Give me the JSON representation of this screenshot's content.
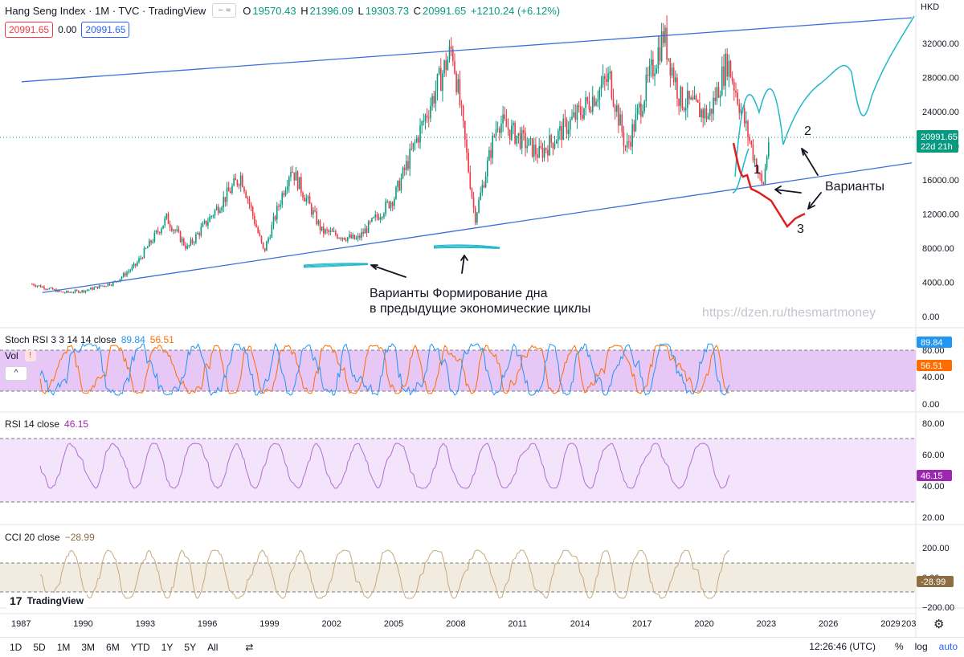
{
  "header": {
    "symbol": "Hang Seng Index · 1M · TVC · TradingView",
    "ohlc": {
      "o_label": "O",
      "o": "19570.43",
      "h_label": "H",
      "h": "21396.09",
      "l_label": "L",
      "l": "19303.73",
      "c_label": "C",
      "c": "20991.65",
      "change": "+1210.24 (+6.12%)"
    },
    "price_sell": "20991.65",
    "spread": "0.00",
    "price_buy": "20991.65",
    "currency": "HKD"
  },
  "colors": {
    "up": "#089981",
    "down": "#f23645",
    "trend": "#3b6fd9",
    "cyan": "#20b7cc",
    "red_path": "#e0201f",
    "stoch_k": "#2196f3",
    "stoch_d": "#ff6d00",
    "rsi": "#b070d0",
    "cci": "#c8a87c"
  },
  "panes": {
    "stoch": {
      "name": "Stoch RSI 3 3 14 14 close",
      "k": "89.84",
      "d": "56.51",
      "ticks": [
        "80.00",
        "40.00",
        "0.00"
      ],
      "tag_k": "89.84",
      "tag_d": "56.51"
    },
    "vol": {
      "name": "Vol",
      "warn": "!"
    },
    "rsi": {
      "name": "RSI 14 close",
      "value": "46.15",
      "ticks": [
        "80.00",
        "60.00",
        "40.00",
        "20.00"
      ],
      "tag": "46.15"
    },
    "cci": {
      "name": "CCI 20 close",
      "value": "−28.99",
      "ticks": [
        "200.00",
        "0.00",
        "−200.00"
      ],
      "tag": "-28.99"
    }
  },
  "price_ticks": [
    "32000.00",
    "28000.00",
    "24000.00",
    "20000.00",
    "16000.00",
    "12000.00",
    "8000.00",
    "4000.00",
    "0.00"
  ],
  "current_price_tag": {
    "price": "20991.65",
    "time": "22d 21h"
  },
  "x_ticks": [
    "1987",
    "1990",
    "1993",
    "1996",
    "1999",
    "2002",
    "2005",
    "2008",
    "2011",
    "2014",
    "2017",
    "2020",
    "2023",
    "2026",
    "2029",
    "203"
  ],
  "annotations": {
    "variants_bottom_1": "Варианты Формирование дна",
    "variants_bottom_2": "в предыдущие экономические циклы",
    "variants": "Варианты",
    "n1": "1",
    "n2": "2",
    "n3": "3"
  },
  "watermark": "https://dzen.ru/thesmartmoney",
  "bottom": {
    "ranges": [
      "1D",
      "5D",
      "1M",
      "3M",
      "6M",
      "YTD",
      "1Y",
      "5Y",
      "All"
    ],
    "time": "12:26:46 (UTC)",
    "percent": "%",
    "log": "log",
    "auto": "auto"
  },
  "logo": "TradingView",
  "chart_data": {
    "type": "line",
    "title": "Hang Seng Index · 1M · TVC · TradingView",
    "x_range": [
      1987,
      2030
    ],
    "ylim": [
      0,
      35000
    ],
    "series": [
      {
        "values_x": [
          1987.5,
          1989,
          1990,
          1991.5,
          1992.5,
          1994,
          1995,
          1997.6,
          1998.7,
          2000,
          2001.5,
          2003.2,
          2005,
          2007.8,
          2008.9,
          2010,
          2012,
          2014,
          2015.4,
          2016.2,
          2018,
          2018.8,
          2020.2,
          2021.1,
          2022.8,
          2023.1
        ],
        "values": [
          3800,
          2800,
          3000,
          4000,
          6000,
          11500,
          8000,
          16500,
          7500,
          17500,
          10000,
          9000,
          14000,
          31500,
          11500,
          23000,
          19000,
          24000,
          28000,
          19500,
          33000,
          25500,
          23500,
          30000,
          15000,
          21000
        ]
      }
    ],
    "trendlines": [
      {
        "from": [
          1987,
          27500
        ],
        "to": [
          2030,
          35000
        ]
      },
      {
        "from": [
          1988,
          2800
        ],
        "to": [
          2030,
          18000
        ]
      }
    ],
    "scenarios": [
      {
        "label": "1",
        "points": [
          [
            2023.0,
            18000
          ],
          [
            2024,
            16500
          ],
          [
            2025.5,
            18500
          ],
          [
            2026.5,
            22500
          ],
          [
            2028,
            26000
          ],
          [
            2029,
            29000
          ],
          [
            2030,
            34000
          ]
        ]
      },
      {
        "label": "2",
        "points": [
          [
            2023.0,
            19000
          ],
          [
            2024.5,
            20500
          ],
          [
            2026,
            20000
          ]
        ]
      },
      {
        "label": "3",
        "points": [
          [
            2023.0,
            19500
          ],
          [
            2024,
            15000
          ],
          [
            2025,
            13500
          ],
          [
            2026,
            10500
          ],
          [
            2026.5,
            12000
          ]
        ]
      }
    ]
  }
}
